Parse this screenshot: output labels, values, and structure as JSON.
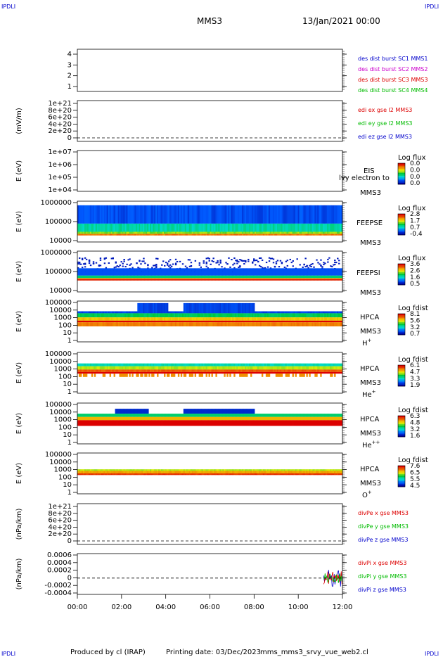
{
  "header": {
    "corner_tl": "IPDLI",
    "corner_tr": "IPDLI",
    "corner_bl": "IPDLI",
    "corner_br": "IPDLI",
    "mission": "MMS3",
    "date": "13/Jan/2021 00:00"
  },
  "footer": {
    "produced_by": "Produced by cl (IRAP)",
    "printing_date": "Printing date: 03/Dec/2023",
    "script": "mms_mms3_srvy_vue_web2.cl"
  },
  "colors": {
    "blue": "#0000cc",
    "magenta": "#cc00cc",
    "red": "#dd0000",
    "green": "#00bb00"
  },
  "chart_data": [
    {
      "id": "dist",
      "type": "line",
      "ylabel": "",
      "ylim": [
        0.5,
        4.5
      ],
      "yticks": [
        "4",
        "3",
        "2",
        "1"
      ],
      "legend": [
        {
          "label": "des dist burst SC1 MMS1",
          "color": "#0000cc"
        },
        {
          "label": "des dist burst SC2 MMS2",
          "color": "#cc00cc"
        },
        {
          "label": "des dist burst SC3 MMS3",
          "color": "#dd0000"
        },
        {
          "label": "des dist burst SC4 MMS4",
          "color": "#00bb00"
        }
      ],
      "series": []
    },
    {
      "id": "edi",
      "type": "line",
      "ylabel": "(mV/m)",
      "yticks": [
        "1e+21",
        "8e+20",
        "6e+20",
        "4e+20",
        "2e+20",
        "0"
      ],
      "zero_line": true,
      "legend": [
        {
          "label": "edi ex gse l2 MMS3",
          "color": "#dd0000"
        },
        {
          "label": "edi ey gse l2 MMS3",
          "color": "#00bb00"
        },
        {
          "label": "edi ez gse l2 MMS3",
          "color": "#0000cc"
        }
      ],
      "series": []
    },
    {
      "id": "eis",
      "type": "heatmap",
      "ylabel": "E (eV)",
      "yticks": [
        "1e+07",
        "1e+06",
        "1e+05",
        "1e+04"
      ],
      "instrument": "EIS",
      "overlay_text": "lvy electron to",
      "spacecraft": "MMS3",
      "colorbar": {
        "title": "Log flux",
        "ticks": [
          "0.0",
          "0.0",
          "0.0",
          "0.0"
        ]
      }
    },
    {
      "id": "feepse",
      "type": "heatmap",
      "ylabel": "E (eV)",
      "yticks": [
        "1000000",
        "100000",
        "10000"
      ],
      "instrument": "FEEPSE",
      "spacecraft": "MMS3",
      "colorbar": {
        "title": "Log flux",
        "ticks": [
          "2.8",
          "1.7",
          "0.7",
          "-0.4"
        ]
      }
    },
    {
      "id": "feepsi",
      "type": "heatmap",
      "ylabel": "E (eV)",
      "yticks": [
        "1000000",
        "100000",
        "10000"
      ],
      "instrument": "FEEPSI",
      "spacecraft": "MMS3",
      "colorbar": {
        "title": "Log flux",
        "ticks": [
          "3.6",
          "2.6",
          "1.6",
          "0.5"
        ]
      }
    },
    {
      "id": "hpca_h",
      "type": "heatmap",
      "ylabel": "E (eV)",
      "yticks": [
        "100000",
        "10000",
        "1000",
        "100",
        "10",
        "1"
      ],
      "instrument": "HPCA",
      "spacecraft": "MMS3",
      "species": "H",
      "species_sup": "+",
      "colorbar": {
        "title": "Log fdist",
        "ticks": [
          "8.1",
          "5.6",
          "3.2",
          "0.7"
        ]
      }
    },
    {
      "id": "hpca_he1",
      "type": "heatmap",
      "ylabel": "E (eV)",
      "yticks": [
        "100000",
        "10000",
        "1000",
        "100",
        "10",
        "1"
      ],
      "instrument": "HPCA",
      "spacecraft": "MMS3",
      "species": "He",
      "species_sup": "+",
      "colorbar": {
        "title": "Log fdist",
        "ticks": [
          "6.1",
          "4.7",
          "3.3",
          "1.9"
        ]
      }
    },
    {
      "id": "hpca_he2",
      "type": "heatmap",
      "ylabel": "E (eV)",
      "yticks": [
        "100000",
        "10000",
        "1000",
        "100",
        "10",
        "1"
      ],
      "instrument": "HPCA",
      "spacecraft": "MMS3",
      "species": "He",
      "species_sup": "++",
      "colorbar": {
        "title": "Log fdist",
        "ticks": [
          "6.3",
          "4.8",
          "3.2",
          "1.6"
        ]
      }
    },
    {
      "id": "hpca_o",
      "type": "heatmap",
      "ylabel": "E (eV)",
      "yticks": [
        "100000",
        "10000",
        "1000",
        "100",
        "10",
        "1"
      ],
      "instrument": "HPCA",
      "spacecraft": "MMS3",
      "species": "O",
      "species_sup": "+",
      "colorbar": {
        "title": "Log fdist",
        "ticks": [
          "7.6",
          "6.5",
          "5.5",
          "4.5"
        ]
      }
    },
    {
      "id": "divpe",
      "type": "line",
      "ylabel": "(nPa/km)",
      "yticks": [
        "1e+21",
        "8e+20",
        "6e+20",
        "4e+20",
        "2e+20",
        "0"
      ],
      "zero_line": true,
      "legend": [
        {
          "label": "divPe x gse MMS3",
          "color": "#dd0000"
        },
        {
          "label": "divPe y gse MMS3",
          "color": "#00bb00"
        },
        {
          "label": "divPe z gse MMS3",
          "color": "#0000cc"
        }
      ],
      "series": []
    },
    {
      "id": "divpi",
      "type": "line",
      "ylabel": "(nPa/km)",
      "yticks": [
        "0.0006",
        "0.0004",
        "0.0002",
        "0",
        "-0.0002",
        "-0.0004"
      ],
      "ylim": [
        -0.0005,
        0.00065
      ],
      "zero_line": true,
      "legend": [
        {
          "label": "divPi x gse MMS3",
          "color": "#dd0000"
        },
        {
          "label": "divPi y gse MMS3",
          "color": "#00bb00"
        },
        {
          "label": "divPi z gse MMS3",
          "color": "#0000cc"
        }
      ],
      "series": [
        {
          "name": "divPi x gse MMS3",
          "x_start": "11:10",
          "x_end": "12:00",
          "approx_range": [
            -0.0002,
            0.0004
          ]
        },
        {
          "name": "divPi y gse MMS3",
          "x_start": "11:10",
          "x_end": "12:00",
          "approx_range": [
            -0.0002,
            0.0002
          ]
        },
        {
          "name": "divPi z gse MMS3",
          "x_start": "11:10",
          "x_end": "12:00",
          "approx_range": [
            -0.0003,
            0.0005
          ]
        }
      ]
    }
  ],
  "xaxis": {
    "tick_labels": [
      "00:00",
      "02:00",
      "04:00",
      "06:00",
      "08:00",
      "10:00",
      "12:00"
    ],
    "range_hours": [
      0,
      12
    ]
  }
}
